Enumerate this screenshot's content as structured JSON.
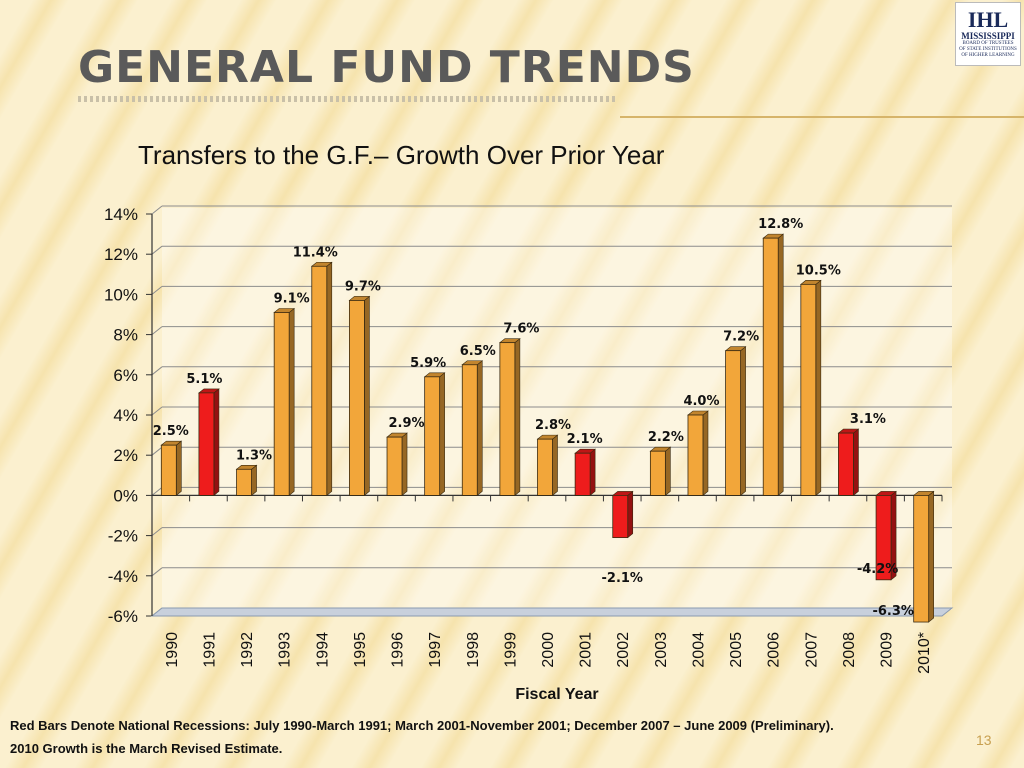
{
  "slide": {
    "title": "GENERAL FUND TRENDS",
    "subtitle": "Transfers to the G.F.– Growth Over Prior Year",
    "footnote1": "Red Bars Denote National Recessions: July 1990-March 1991;  March 2001-November 2001; December 2007 – June 2009 (Preliminary).",
    "footnote2": "2010 Growth is the March Revised Estimate.",
    "page_number": "13"
  },
  "logo": {
    "mark": "IHL",
    "state": "MISSISSIPPI",
    "line1": "BOARD OF TRUSTEES",
    "line2": "OF STATE INSTITUTIONS",
    "line3": "OF HIGHER LEARNING"
  },
  "colors": {
    "normal_bar": "#f2a63a",
    "recession_bar": "#ee1c1c",
    "gridline": "#8c8c8c",
    "floor": "#c8d0dc"
  },
  "chart_data": {
    "type": "bar",
    "title": "Transfers to the G.F.– Growth Over Prior Year",
    "xlabel": "Fiscal Year",
    "ylabel": "",
    "ylim": [
      -6,
      14
    ],
    "ytick_labels": [
      "14%",
      "12%",
      "10%",
      "8%",
      "6%",
      "4%",
      "2%",
      "0%",
      "-2%",
      "-4%",
      "-6%"
    ],
    "ytick_values": [
      14,
      12,
      10,
      8,
      6,
      4,
      2,
      0,
      -2,
      -4,
      -6
    ],
    "categories": [
      "1990",
      "1991",
      "1992",
      "1993",
      "1994",
      "1995",
      "1996",
      "1997",
      "1998",
      "1999",
      "2000",
      "2001",
      "2002",
      "2003",
      "2004",
      "2005",
      "2006",
      "2007",
      "2008",
      "2009",
      "2010*"
    ],
    "values": [
      2.5,
      5.1,
      1.3,
      9.1,
      11.4,
      9.7,
      2.9,
      5.9,
      6.5,
      7.6,
      2.8,
      2.1,
      -2.1,
      2.2,
      4.0,
      7.2,
      12.8,
      10.5,
      3.1,
      -4.2,
      -6.3
    ],
    "labels": [
      "2.5%",
      "5.1%",
      "1.3%",
      "9.1%",
      "11.4%",
      "9.7%",
      "2.9%",
      "5.9%",
      "6.5%",
      "7.6%",
      "2.8%",
      "2.1%",
      "-2.1%",
      "2.2%",
      "4.0%",
      "7.2%",
      "12.8%",
      "10.5%",
      "3.1%",
      "-4.2%",
      "-6.3%"
    ],
    "recession": [
      false,
      true,
      false,
      false,
      false,
      false,
      false,
      false,
      false,
      false,
      false,
      true,
      true,
      false,
      false,
      false,
      false,
      false,
      true,
      true,
      false
    ],
    "grid": true
  }
}
